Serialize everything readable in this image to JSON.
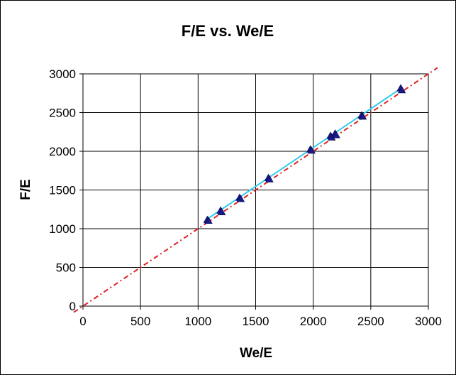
{
  "chart_data": {
    "type": "scatter",
    "title": "F/E vs. We/E",
    "xlabel": "We/E",
    "ylabel": "F/E",
    "xlim": [
      0,
      3000
    ],
    "ylim": [
      0,
      3000
    ],
    "x_ticks": [
      0,
      500,
      1000,
      1500,
      2000,
      2500,
      3000
    ],
    "y_ticks": [
      0,
      500,
      1000,
      1500,
      2000,
      2500,
      3000
    ],
    "grid": true,
    "legend": "none",
    "series": [
      {
        "type": "scatter",
        "marker": "triangle",
        "color": "#1a1a8c",
        "points": [
          {
            "x": 1080,
            "y": 1115
          },
          {
            "x": 1090,
            "y": 1105
          },
          {
            "x": 1195,
            "y": 1235
          },
          {
            "x": 1205,
            "y": 1215
          },
          {
            "x": 1360,
            "y": 1400
          },
          {
            "x": 1370,
            "y": 1385
          },
          {
            "x": 1610,
            "y": 1655
          },
          {
            "x": 1620,
            "y": 1640
          },
          {
            "x": 1975,
            "y": 2025
          },
          {
            "x": 1985,
            "y": 2010
          },
          {
            "x": 2150,
            "y": 2200
          },
          {
            "x": 2160,
            "y": 2180
          },
          {
            "x": 2190,
            "y": 2230
          },
          {
            "x": 2200,
            "y": 2210
          },
          {
            "x": 2420,
            "y": 2465
          },
          {
            "x": 2430,
            "y": 2450
          },
          {
            "x": 2760,
            "y": 2815
          },
          {
            "x": 2770,
            "y": 2790
          }
        ]
      },
      {
        "type": "line",
        "role": "fitted line",
        "color": "#33ccee",
        "points": [
          {
            "x": 1080,
            "y": 1125
          },
          {
            "x": 2770,
            "y": 2820
          }
        ]
      },
      {
        "type": "line",
        "role": "reference line y = x",
        "dash": "dash-dot",
        "color": "#dd2222",
        "points": [
          {
            "x": -80,
            "y": -80
          },
          {
            "x": 3080,
            "y": 3080
          }
        ]
      }
    ]
  }
}
